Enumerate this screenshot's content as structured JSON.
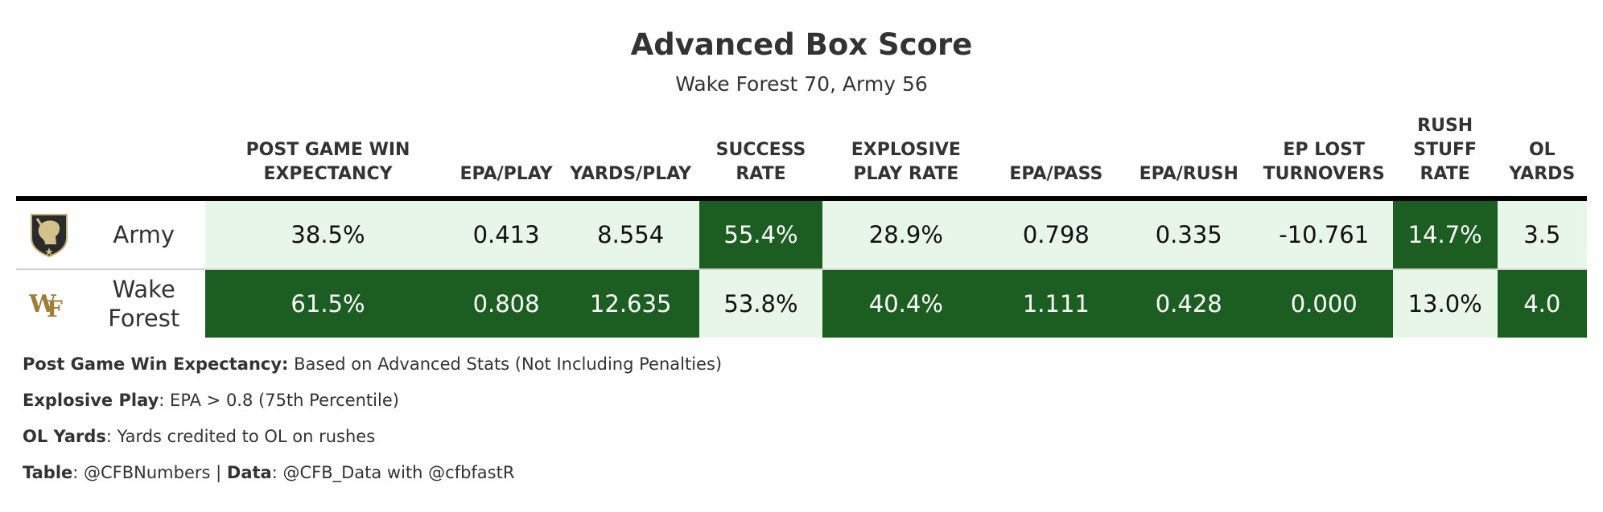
{
  "title": "Advanced Box Score",
  "subtitle": "Wake Forest 70, Army 56",
  "columns": [
    "POST GAME WIN EXPECTANCY",
    "EPA/PLAY",
    "YARDS/PLAY",
    "SUCCESS RATE",
    "EXPLOSIVE PLAY RATE",
    "EPA/PASS",
    "EPA/RUSH",
    "EP LOST TURNOVERS",
    "RUSH STUFF RATE",
    "OL YARDS"
  ],
  "rows": [
    {
      "team": "Army",
      "logo_icon": "army-black-knights-logo-icon",
      "cells": [
        "38.5%",
        "0.413",
        "8.554",
        "55.4%",
        "28.9%",
        "0.798",
        "0.335",
        "-10.761",
        "14.7%",
        "3.5"
      ],
      "highlight": [
        "light",
        "light",
        "light",
        "dark",
        "light",
        "light",
        "light",
        "light",
        "dark",
        "light"
      ]
    },
    {
      "team": "Wake Forest",
      "logo_icon": "wake-forest-wf-logo-icon",
      "cells": [
        "61.5%",
        "0.808",
        "12.635",
        "53.8%",
        "40.4%",
        "1.111",
        "0.428",
        "0.000",
        "13.0%",
        "4.0"
      ],
      "highlight": [
        "dark",
        "dark",
        "dark",
        "light",
        "dark",
        "dark",
        "dark",
        "dark",
        "light",
        "dark"
      ]
    }
  ],
  "colors": {
    "dark_green": "#1c5e22",
    "light_green": "#e8f5e9"
  },
  "notes": [
    {
      "label": "Post Game Win Expectancy:",
      "text": " Based on Advanced Stats (Not Including Penalties)"
    },
    {
      "label": "Explosive Play",
      "text": ": EPA > 0.8 (75th Percentile)"
    },
    {
      "label": "OL Yards",
      "text": ": Yards credited to OL on rushes"
    },
    {
      "label": "Table",
      "text": ": @CFBNumbers | ",
      "label2": "Data",
      "text2": ": @CFB_Data with @cfbfastR"
    }
  ]
}
